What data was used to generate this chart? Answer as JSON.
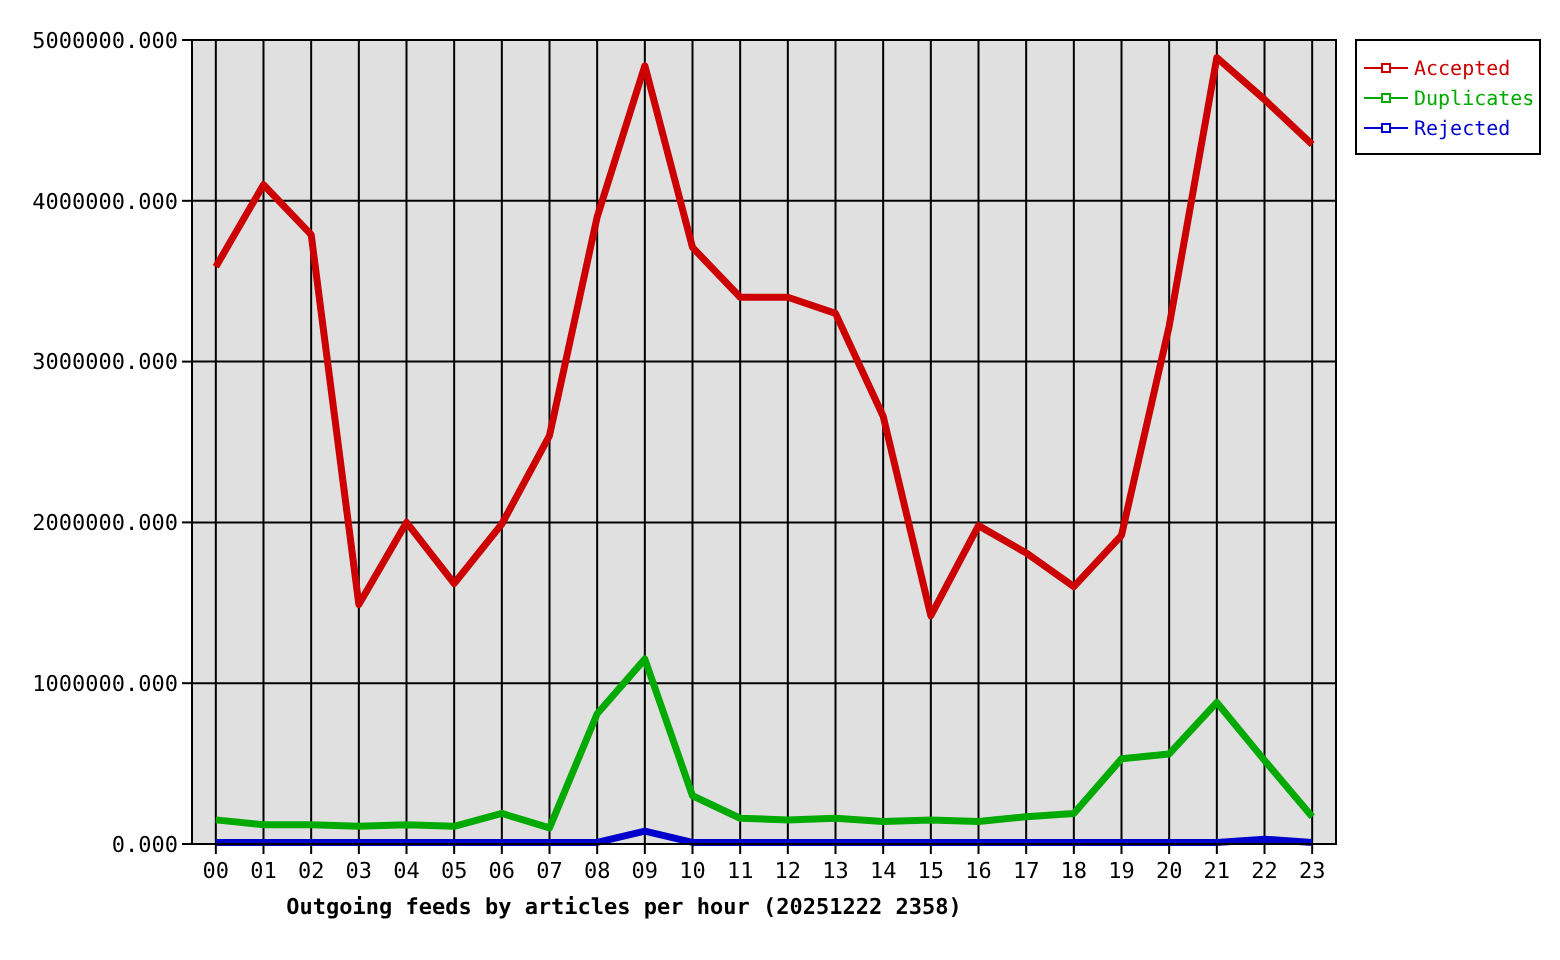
{
  "chart_data": {
    "type": "line",
    "title": "Outgoing feeds by articles per hour (20251222 2358)",
    "categories": [
      "00",
      "01",
      "02",
      "03",
      "04",
      "05",
      "06",
      "07",
      "08",
      "09",
      "10",
      "11",
      "12",
      "13",
      "14",
      "15",
      "16",
      "17",
      "18",
      "19",
      "20",
      "21",
      "22",
      "23"
    ],
    "ylim": [
      0,
      5000000
    ],
    "yticks": [
      {
        "value": 0,
        "label": "0.000"
      },
      {
        "value": 1000000,
        "label": "1000000.000"
      },
      {
        "value": 2000000,
        "label": "2000000.000"
      },
      {
        "value": 3000000,
        "label": "3000000.000"
      },
      {
        "value": 4000000,
        "label": "4000000.000"
      },
      {
        "value": 5000000,
        "label": "5000000.000"
      }
    ],
    "grid": true,
    "legend": "top right",
    "series": [
      {
        "name": "Accepted",
        "color": "#cc0000",
        "values": [
          3590000,
          4100000,
          3790000,
          1490000,
          2000000,
          1620000,
          1990000,
          2540000,
          3900000,
          4840000,
          3710000,
          3400000,
          3400000,
          3300000,
          2660000,
          1420000,
          1980000,
          1810000,
          1600000,
          1920000,
          3220000,
          4890000,
          4630000,
          4350000
        ]
      },
      {
        "name": "Duplicates",
        "color": "#00aa00",
        "values": [
          150000,
          120000,
          120000,
          110000,
          120000,
          110000,
          190000,
          100000,
          810000,
          1150000,
          300000,
          160000,
          150000,
          160000,
          140000,
          150000,
          140000,
          170000,
          190000,
          530000,
          560000,
          880000,
          520000,
          170000
        ]
      },
      {
        "name": "Rejected",
        "color": "#0000cc",
        "values": [
          10000,
          10000,
          10000,
          10000,
          10000,
          10000,
          10000,
          10000,
          10000,
          80000,
          10000,
          10000,
          10000,
          10000,
          10000,
          10000,
          10000,
          10000,
          10000,
          10000,
          10000,
          10000,
          30000,
          10000
        ]
      }
    ]
  }
}
